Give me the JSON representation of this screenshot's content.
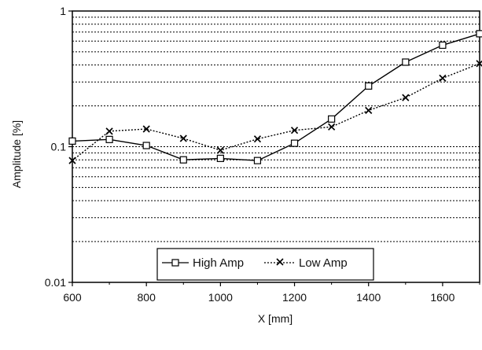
{
  "chart_data": {
    "type": "line",
    "title": "",
    "xlabel": "X [mm]",
    "ylabel": "Amplitude [%]",
    "xlim": [
      600,
      1700
    ],
    "ylim": [
      0.01,
      1
    ],
    "yscale": "log",
    "grid": "horizontal-dotted-log",
    "legend_position": "bottom-center",
    "x_ticks": [
      "600",
      "800",
      "1000",
      "1200",
      "1400",
      "1600"
    ],
    "x_tick_values": [
      600,
      800,
      1000,
      1200,
      1400,
      1600
    ],
    "y_ticks": [
      "0.01",
      "0.1",
      "1"
    ],
    "y_tick_values": [
      0.01,
      0.1,
      1
    ],
    "x": [
      600,
      700,
      800,
      900,
      1000,
      1100,
      1200,
      1300,
      1400,
      1500,
      1600,
      1700
    ],
    "series": [
      {
        "name": "High Amp",
        "marker": "square",
        "line": "solid",
        "values": [
          0.11,
          0.113,
          0.102,
          0.08,
          0.082,
          0.079,
          0.106,
          0.16,
          0.28,
          0.42,
          0.56,
          0.68
        ]
      },
      {
        "name": "Low Amp",
        "marker": "cross",
        "line": "dotted",
        "values": [
          0.079,
          0.13,
          0.135,
          0.115,
          0.094,
          0.114,
          0.132,
          0.14,
          0.185,
          0.23,
          0.32,
          0.41
        ]
      }
    ]
  }
}
